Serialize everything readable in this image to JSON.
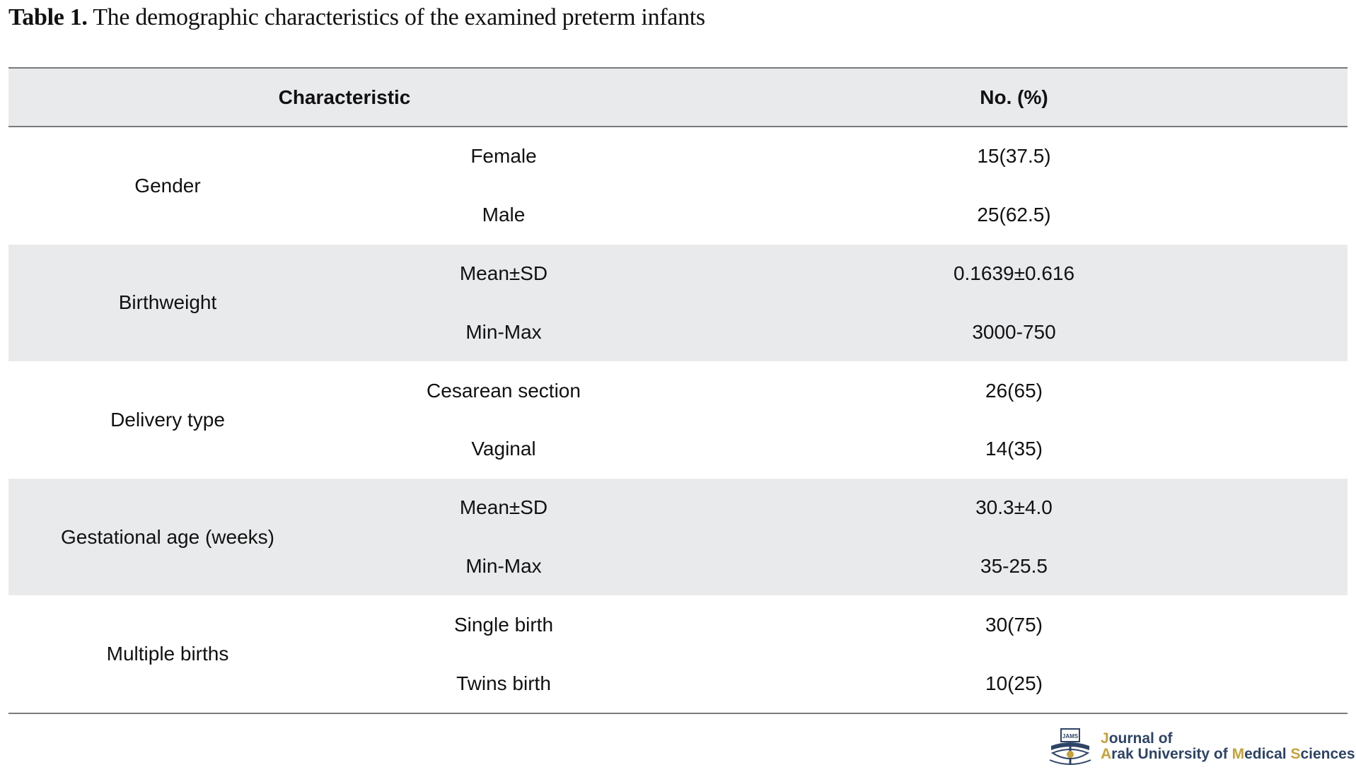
{
  "caption": {
    "label": "Table 1.",
    "text": " The demographic characteristics of the examined preterm infants"
  },
  "table": {
    "headers": {
      "characteristic": "Characteristic",
      "value": "No. (%)"
    },
    "groups": [
      {
        "label": "Gender",
        "rows": [
          {
            "label": "Female",
            "value": "15(37.5)"
          },
          {
            "label": "Male",
            "value": "25(62.5)"
          }
        ]
      },
      {
        "label": "Birthweight",
        "rows": [
          {
            "label": "Mean±SD",
            "value": "0.1639±0.616"
          },
          {
            "label": "Min-Max",
            "value": "3000-750"
          }
        ]
      },
      {
        "label": "Delivery type",
        "rows": [
          {
            "label": "Cesarean section",
            "value": "26(65)"
          },
          {
            "label": "Vaginal",
            "value": "14(35)"
          }
        ]
      },
      {
        "label": "Gestational age (weeks)",
        "rows": [
          {
            "label": "Mean±SD",
            "value": "30.3±4.0"
          },
          {
            "label": "Min-Max",
            "value": "35-25.5"
          }
        ]
      },
      {
        "label": "Multiple births",
        "rows": [
          {
            "label": "Single birth",
            "value": "30(75)"
          },
          {
            "label": "Twins birth",
            "value": "10(25)"
          }
        ]
      }
    ]
  },
  "logo": {
    "line1_initial": "J",
    "line1_rest": "ournal of",
    "line2_a": "A",
    "line2_b": "rak University of ",
    "line2_c": "M",
    "line2_d": "edical ",
    "line2_e": "S",
    "line2_f": "ciences",
    "emblem_text": "JAMS",
    "colors": {
      "navy": "#2e4466",
      "gold": "#c7a23a",
      "shade": "#e9eaec",
      "rule": "#7a7a7a"
    }
  }
}
